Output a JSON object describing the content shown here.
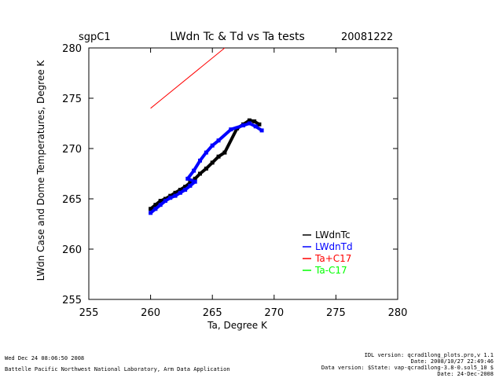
{
  "chart_data": {
    "type": "scatter",
    "site": "sgpC1",
    "title": "LWdn Tc & Td vs Ta tests",
    "date": "20081222",
    "xlabel": "Ta, Degree K",
    "ylabel": "LWdn Case and Dome Temperatures, Degree K",
    "xlim": [
      255,
      280
    ],
    "ylim": [
      255,
      280
    ],
    "xticks": [
      "255",
      "260",
      "265",
      "270",
      "275",
      "280"
    ],
    "yticks": [
      "255",
      "260",
      "265",
      "270",
      "275",
      "280"
    ],
    "grid": false,
    "legend_position": "bottom-right",
    "series": [
      {
        "name": "LWdnTc",
        "color": "#000000",
        "points": [
          [
            260.0,
            264.0
          ],
          [
            260.4,
            264.4
          ],
          [
            260.8,
            264.8
          ],
          [
            261.2,
            265.0
          ],
          [
            261.6,
            265.3
          ],
          [
            262.0,
            265.6
          ],
          [
            262.4,
            265.9
          ],
          [
            262.8,
            266.2
          ],
          [
            263.2,
            266.6
          ],
          [
            263.6,
            267.0
          ],
          [
            264.0,
            267.5
          ],
          [
            264.5,
            268.0
          ],
          [
            265.0,
            268.6
          ],
          [
            265.5,
            269.2
          ],
          [
            266.0,
            269.6
          ],
          [
            267.0,
            272.0
          ],
          [
            267.5,
            272.4
          ],
          [
            268.0,
            272.8
          ],
          [
            268.4,
            272.7
          ],
          [
            268.8,
            272.4
          ]
        ]
      },
      {
        "name": "LWdnTd",
        "color": "#0000ff",
        "points": [
          [
            260.0,
            263.6
          ],
          [
            260.4,
            264.0
          ],
          [
            260.8,
            264.4
          ],
          [
            261.2,
            264.8
          ],
          [
            261.6,
            265.1
          ],
          [
            262.0,
            265.3
          ],
          [
            262.4,
            265.6
          ],
          [
            262.8,
            265.9
          ],
          [
            263.2,
            266.3
          ],
          [
            263.6,
            266.7
          ],
          [
            263.0,
            267.0
          ],
          [
            263.5,
            267.8
          ],
          [
            264.0,
            268.8
          ],
          [
            264.5,
            269.6
          ],
          [
            265.0,
            270.3
          ],
          [
            265.5,
            270.8
          ],
          [
            266.5,
            271.9
          ],
          [
            267.5,
            272.3
          ],
          [
            268.0,
            272.5
          ],
          [
            268.5,
            272.2
          ],
          [
            269.0,
            271.8
          ]
        ]
      },
      {
        "name": "Ta+C17",
        "color": "#ff0000",
        "points": [
          [
            260.0,
            274.0
          ],
          [
            266.0,
            280.0
          ]
        ]
      },
      {
        "name": "Ta-C17",
        "color": "#00ff00",
        "points": []
      }
    ]
  },
  "footer": {
    "timestamp": "Wed Dec 24 08:06:50 2008",
    "org": "Battelle Pacific Northwest National Laboratory, Arm Data Application",
    "idl": "IDL version: qcrad1long_plots.pro,v 1.1",
    "file_date": "Date: 2008/10/27 22:49:46",
    "data_version": "Data version: $State: vap-qcrad1long-3.8-0.sol5_10 $",
    "run_date": "Date: 24-Dec-2008"
  }
}
